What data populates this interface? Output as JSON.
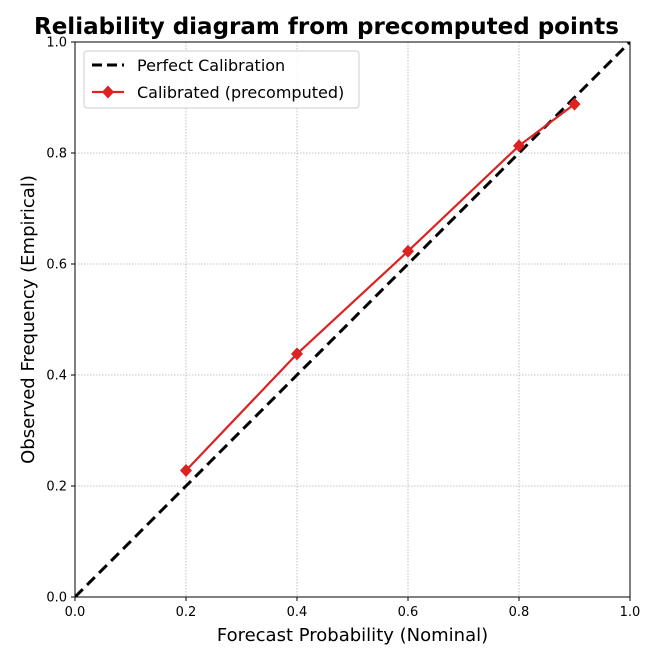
{
  "chart_data": {
    "type": "line",
    "title": "Reliability diagram from precomputed points",
    "xlabel": "Forecast Probability (Nominal)",
    "ylabel": "Observed Frequency (Empirical)",
    "xlim": [
      0.0,
      1.0
    ],
    "ylim": [
      0.0,
      1.0
    ],
    "xticks": [
      "0.0",
      "0.2",
      "0.4",
      "0.6",
      "0.8",
      "1.0"
    ],
    "yticks": [
      "0.0",
      "0.2",
      "0.4",
      "0.6",
      "0.8",
      "1.0"
    ],
    "grid": true,
    "legend_position": "top-left",
    "series": [
      {
        "name": "Perfect Calibration",
        "style": "dashed",
        "color": "#000000",
        "x": [
          0.0,
          1.0
        ],
        "y": [
          0.0,
          1.0
        ]
      },
      {
        "name": "Calibrated (precomputed)",
        "style": "solid",
        "marker": "diamond",
        "color": "#dd2222",
        "x": [
          0.2,
          0.4,
          0.6,
          0.8,
          0.9
        ],
        "y": [
          0.228,
          0.438,
          0.623,
          0.813,
          0.888
        ]
      }
    ]
  }
}
